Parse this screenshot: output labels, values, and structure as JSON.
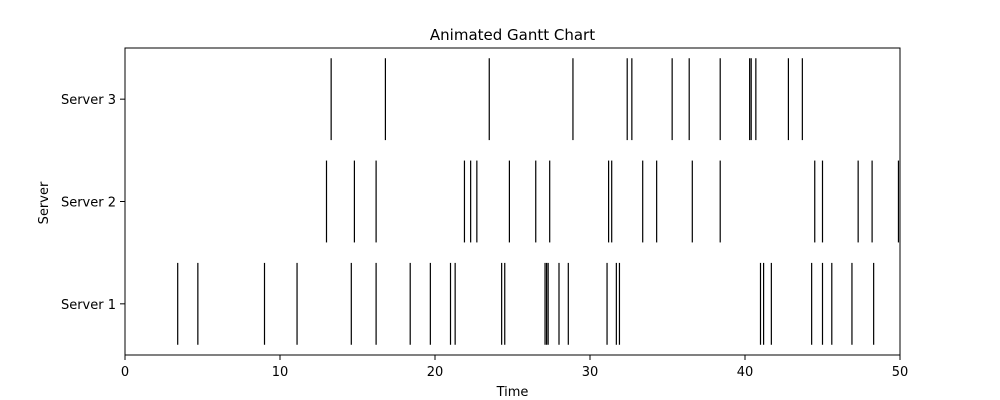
{
  "chart_data": {
    "type": "gantt",
    "title": "Animated Gantt Chart",
    "xlabel": "Time",
    "ylabel": "Server",
    "xlim": [
      0,
      50
    ],
    "xticks": [
      0,
      10,
      20,
      30,
      40,
      50
    ],
    "grid": false,
    "categories": [
      "Server 1",
      "Server 2",
      "Server 3"
    ],
    "series": [
      {
        "category": "Server 1",
        "events": [
          3.4,
          4.7,
          9.0,
          11.1,
          14.6,
          16.2,
          18.4,
          19.7,
          21.0,
          21.3,
          24.3,
          24.5,
          27.1,
          27.2,
          27.3,
          28.0,
          28.6,
          31.1,
          31.7,
          31.9,
          41.0,
          41.2,
          41.7,
          44.3,
          45.0,
          45.6,
          46.9,
          48.3
        ]
      },
      {
        "category": "Server 2",
        "events": [
          13.0,
          14.8,
          16.2,
          21.9,
          22.3,
          22.7,
          24.8,
          26.5,
          27.4,
          31.2,
          31.4,
          33.4,
          34.3,
          36.6,
          38.4,
          44.5,
          45.0,
          47.3,
          48.2,
          49.9
        ]
      },
      {
        "category": "Server 3",
        "events": [
          13.3,
          16.8,
          23.5,
          28.9,
          32.4,
          32.7,
          35.3,
          36.4,
          38.4,
          40.3,
          40.4,
          40.7,
          42.8,
          43.7
        ]
      }
    ]
  }
}
